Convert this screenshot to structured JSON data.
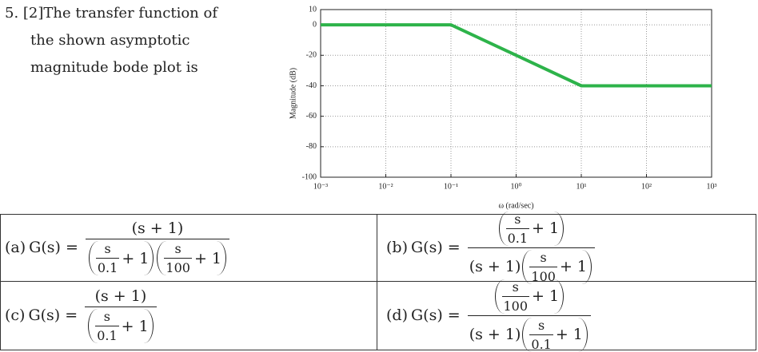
{
  "question": {
    "lines": [
      "5. [2]The transfer function of",
      "the shown asymptotic",
      "magnitude bode plot is"
    ]
  },
  "chart_data": {
    "type": "line",
    "xlabel": "ω (rad/sec)",
    "ylabel": "Magnitude (dB)",
    "log_x": true,
    "grid": true,
    "xlim": [
      0.001,
      1000
    ],
    "ylim": [
      -100,
      10
    ],
    "xticks": [
      {
        "value": 0.001,
        "label": "10⁻³"
      },
      {
        "value": 0.01,
        "label": "10⁻²"
      },
      {
        "value": 0.1,
        "label": "10⁻¹"
      },
      {
        "value": 1,
        "label": "10⁰"
      },
      {
        "value": 10,
        "label": "10¹"
      },
      {
        "value": 100,
        "label": "10²"
      },
      {
        "value": 1000,
        "label": "10³"
      }
    ],
    "yticks": [
      10,
      0,
      -20,
      -40,
      -60,
      -80,
      -100
    ],
    "x": [
      0.001,
      0.1,
      10,
      1000
    ],
    "series": [
      {
        "color": "#2db34a",
        "values": [
          0,
          0,
          -40,
          -40
        ]
      }
    ]
  },
  "options": [
    {
      "label": "(a)",
      "lhs": "G(s) =",
      "numerator": [
        {
          "text": "(s + 1)"
        }
      ],
      "denominator": [
        {
          "num": "s",
          "den": "0.1",
          "tail": "+ 1"
        },
        {
          "num": "s",
          "den": "100",
          "tail": "+ 1"
        }
      ]
    },
    {
      "label": "(b)",
      "lhs": "G(s) =",
      "numerator": [
        {
          "num": "s",
          "den": "0.1",
          "tail": "+ 1"
        }
      ],
      "denominator": [
        {
          "text": "(s + 1)"
        },
        {
          "num": "s",
          "den": "100",
          "tail": "+ 1"
        }
      ]
    },
    {
      "label": "(c)",
      "lhs": "G(s) =",
      "numerator": [
        {
          "text": "(s + 1)"
        }
      ],
      "denominator": [
        {
          "num": "s",
          "den": "0.1",
          "tail": "+ 1"
        }
      ]
    },
    {
      "label": "(d)",
      "lhs": "G(s) =",
      "numerator": [
        {
          "num": "s",
          "den": "100",
          "tail": "+ 1"
        }
      ],
      "denominator": [
        {
          "text": "(s + 1)"
        },
        {
          "num": "s",
          "den": "0.1",
          "tail": "+ 1"
        }
      ]
    }
  ]
}
